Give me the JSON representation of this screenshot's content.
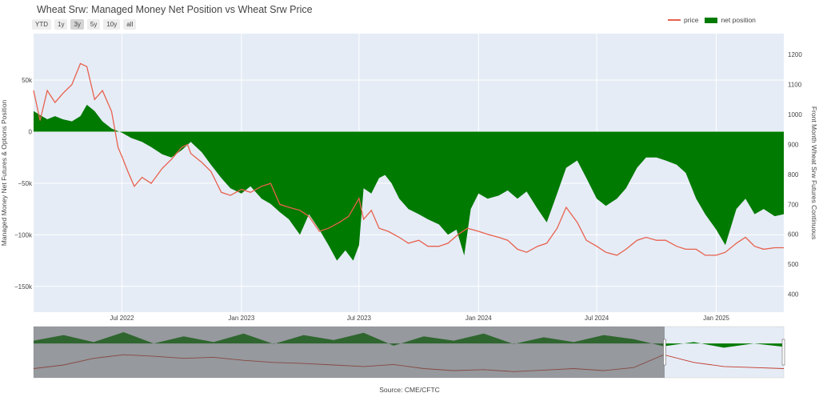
{
  "chart_data": {
    "type": "area",
    "title": "Wheat Srw: Managed Money Net Position vs Wheat Srw Price",
    "ylabel": "Managed Money Net Futures & Options Position",
    "y2label": "Front Month Wheat Srw Futures Continuous",
    "source": "Source: CME/CFTC",
    "range_buttons": [
      "YTD",
      "1y",
      "3y",
      "5y",
      "10y",
      "all"
    ],
    "active_range": "3y",
    "xlim": [
      "2022-02-15",
      "2025-04-15"
    ],
    "ylim": [
      -175000,
      95000
    ],
    "y2lim": [
      340,
      1270
    ],
    "x_ticks": [
      {
        "date": "2022-07-01",
        "label": "Jul 2022"
      },
      {
        "date": "2023-01-01",
        "label": "Jan 2023"
      },
      {
        "date": "2023-07-01",
        "label": "Jul 2023"
      },
      {
        "date": "2024-01-01",
        "label": "Jan 2024"
      },
      {
        "date": "2024-07-01",
        "label": "Jul 2024"
      },
      {
        "date": "2025-01-01",
        "label": "Jan 2025"
      }
    ],
    "y_ticks": [
      {
        "value": 50000,
        "label": "50k"
      },
      {
        "value": 0,
        "label": "0"
      },
      {
        "value": -50000,
        "label": "−50k"
      },
      {
        "value": -100000,
        "label": "−100k"
      },
      {
        "value": -150000,
        "label": "−150k"
      }
    ],
    "y2_ticks": [
      400,
      500,
      600,
      700,
      800,
      900,
      1000,
      1100,
      1200
    ],
    "legend_position": "top-right",
    "series": [
      {
        "name": "net position",
        "kind": "area",
        "color": "#007a00",
        "points": [
          [
            "2022-02-15",
            20000
          ],
          [
            "2022-02-25",
            16000
          ],
          [
            "2022-03-08",
            12000
          ],
          [
            "2022-03-20",
            15000
          ],
          [
            "2022-04-01",
            12000
          ],
          [
            "2022-04-15",
            10000
          ],
          [
            "2022-04-28",
            15000
          ],
          [
            "2022-05-08",
            26000
          ],
          [
            "2022-05-20",
            20000
          ],
          [
            "2022-06-01",
            10000
          ],
          [
            "2022-06-15",
            3000
          ],
          [
            "2022-07-01",
            -1000
          ],
          [
            "2022-07-15",
            -6000
          ],
          [
            "2022-08-01",
            -10000
          ],
          [
            "2022-08-15",
            -15000
          ],
          [
            "2022-09-01",
            -22000
          ],
          [
            "2022-09-15",
            -25000
          ],
          [
            "2022-10-01",
            -18000
          ],
          [
            "2022-10-15",
            -10000
          ],
          [
            "2022-11-01",
            -20000
          ],
          [
            "2022-11-15",
            -32000
          ],
          [
            "2022-12-01",
            -45000
          ],
          [
            "2022-12-15",
            -55000
          ],
          [
            "2023-01-01",
            -60000
          ],
          [
            "2023-01-15",
            -53000
          ],
          [
            "2023-02-01",
            -65000
          ],
          [
            "2023-02-15",
            -70000
          ],
          [
            "2023-03-01",
            -78000
          ],
          [
            "2023-03-15",
            -85000
          ],
          [
            "2023-04-01",
            -100000
          ],
          [
            "2023-04-15",
            -80000
          ],
          [
            "2023-05-01",
            -95000
          ],
          [
            "2023-05-15",
            -110000
          ],
          [
            "2023-05-28",
            -125000
          ],
          [
            "2023-06-10",
            -115000
          ],
          [
            "2023-06-22",
            -125000
          ],
          [
            "2023-07-01",
            -110000
          ],
          [
            "2023-07-08",
            -55000
          ],
          [
            "2023-07-20",
            -60000
          ],
          [
            "2023-08-01",
            -45000
          ],
          [
            "2023-08-10",
            -42000
          ],
          [
            "2023-08-20",
            -50000
          ],
          [
            "2023-09-01",
            -65000
          ],
          [
            "2023-09-15",
            -75000
          ],
          [
            "2023-10-01",
            -80000
          ],
          [
            "2023-10-15",
            -85000
          ],
          [
            "2023-11-01",
            -90000
          ],
          [
            "2023-11-15",
            -100000
          ],
          [
            "2023-11-28",
            -95000
          ],
          [
            "2023-12-10",
            -120000
          ],
          [
            "2023-12-20",
            -75000
          ],
          [
            "2024-01-01",
            -60000
          ],
          [
            "2024-01-15",
            -65000
          ],
          [
            "2024-02-01",
            -62000
          ],
          [
            "2024-02-15",
            -57000
          ],
          [
            "2024-03-01",
            -65000
          ],
          [
            "2024-03-15",
            -58000
          ],
          [
            "2024-04-01",
            -75000
          ],
          [
            "2024-04-15",
            -88000
          ],
          [
            "2024-05-01",
            -60000
          ],
          [
            "2024-05-15",
            -35000
          ],
          [
            "2024-06-01",
            -28000
          ],
          [
            "2024-06-15",
            -45000
          ],
          [
            "2024-07-01",
            -65000
          ],
          [
            "2024-07-15",
            -72000
          ],
          [
            "2024-08-01",
            -65000
          ],
          [
            "2024-08-15",
            -55000
          ],
          [
            "2024-09-01",
            -35000
          ],
          [
            "2024-09-15",
            -25000
          ],
          [
            "2024-10-01",
            -25000
          ],
          [
            "2024-10-15",
            -28000
          ],
          [
            "2024-11-01",
            -32000
          ],
          [
            "2024-11-15",
            -40000
          ],
          [
            "2024-12-01",
            -65000
          ],
          [
            "2024-12-15",
            -80000
          ],
          [
            "2025-01-01",
            -95000
          ],
          [
            "2025-01-15",
            -110000
          ],
          [
            "2025-02-01",
            -75000
          ],
          [
            "2025-02-15",
            -65000
          ],
          [
            "2025-03-01",
            -80000
          ],
          [
            "2025-03-15",
            -75000
          ],
          [
            "2025-04-01",
            -82000
          ],
          [
            "2025-04-15",
            -80000
          ]
        ]
      },
      {
        "name": "price",
        "kind": "line",
        "axis": "y2",
        "color": "#e8614d",
        "points": [
          [
            "2022-02-15",
            1080
          ],
          [
            "2022-02-25",
            980
          ],
          [
            "2022-03-08",
            1080
          ],
          [
            "2022-03-20",
            1040
          ],
          [
            "2022-04-01",
            1070
          ],
          [
            "2022-04-15",
            1100
          ],
          [
            "2022-04-28",
            1170
          ],
          [
            "2022-05-08",
            1160
          ],
          [
            "2022-05-20",
            1050
          ],
          [
            "2022-06-01",
            1080
          ],
          [
            "2022-06-15",
            1010
          ],
          [
            "2022-06-25",
            890
          ],
          [
            "2022-07-01",
            860
          ],
          [
            "2022-07-10",
            810
          ],
          [
            "2022-07-20",
            760
          ],
          [
            "2022-08-01",
            790
          ],
          [
            "2022-08-15",
            770
          ],
          [
            "2022-09-01",
            820
          ],
          [
            "2022-09-15",
            850
          ],
          [
            "2022-10-01",
            890
          ],
          [
            "2022-10-10",
            900
          ],
          [
            "2022-10-15",
            870
          ],
          [
            "2022-11-01",
            840
          ],
          [
            "2022-11-15",
            810
          ],
          [
            "2022-12-01",
            740
          ],
          [
            "2022-12-15",
            730
          ],
          [
            "2023-01-01",
            750
          ],
          [
            "2023-01-15",
            740
          ],
          [
            "2023-02-01",
            760
          ],
          [
            "2023-02-15",
            770
          ],
          [
            "2023-03-01",
            700
          ],
          [
            "2023-03-15",
            690
          ],
          [
            "2023-04-01",
            680
          ],
          [
            "2023-04-15",
            660
          ],
          [
            "2023-05-01",
            610
          ],
          [
            "2023-05-15",
            620
          ],
          [
            "2023-06-01",
            640
          ],
          [
            "2023-06-15",
            660
          ],
          [
            "2023-07-01",
            720
          ],
          [
            "2023-07-08",
            650
          ],
          [
            "2023-07-20",
            680
          ],
          [
            "2023-08-01",
            620
          ],
          [
            "2023-08-15",
            610
          ],
          [
            "2023-09-01",
            590
          ],
          [
            "2023-09-15",
            570
          ],
          [
            "2023-10-01",
            580
          ],
          [
            "2023-10-15",
            560
          ],
          [
            "2023-11-01",
            560
          ],
          [
            "2023-11-15",
            570
          ],
          [
            "2023-12-01",
            600
          ],
          [
            "2023-12-15",
            620
          ],
          [
            "2024-01-01",
            610
          ],
          [
            "2024-01-15",
            600
          ],
          [
            "2024-02-01",
            590
          ],
          [
            "2024-02-15",
            580
          ],
          [
            "2024-03-01",
            550
          ],
          [
            "2024-03-15",
            540
          ],
          [
            "2024-04-01",
            560
          ],
          [
            "2024-04-15",
            570
          ],
          [
            "2024-05-01",
            620
          ],
          [
            "2024-05-15",
            690
          ],
          [
            "2024-06-01",
            640
          ],
          [
            "2024-06-15",
            580
          ],
          [
            "2024-07-01",
            560
          ],
          [
            "2024-07-15",
            540
          ],
          [
            "2024-08-01",
            530
          ],
          [
            "2024-08-15",
            550
          ],
          [
            "2024-09-01",
            580
          ],
          [
            "2024-09-15",
            590
          ],
          [
            "2024-10-01",
            580
          ],
          [
            "2024-10-15",
            580
          ],
          [
            "2024-11-01",
            560
          ],
          [
            "2024-11-15",
            550
          ],
          [
            "2024-12-01",
            550
          ],
          [
            "2024-12-15",
            530
          ],
          [
            "2025-01-01",
            530
          ],
          [
            "2025-01-15",
            540
          ],
          [
            "2025-02-01",
            570
          ],
          [
            "2025-02-15",
            590
          ],
          [
            "2025-03-01",
            560
          ],
          [
            "2025-03-15",
            550
          ],
          [
            "2025-04-01",
            555
          ],
          [
            "2025-04-15",
            555
          ]
        ]
      }
    ],
    "navigator": {
      "selected_start": "2022-02-15",
      "selected_end": "2025-04-15",
      "net_position_history": [
        [
          0,
          0.5
        ],
        [
          0.04,
          0.3
        ],
        [
          0.08,
          0.55
        ],
        [
          0.12,
          0.2
        ],
        [
          0.16,
          0.6
        ],
        [
          0.2,
          0.35
        ],
        [
          0.24,
          0.55
        ],
        [
          0.28,
          0.25
        ],
        [
          0.32,
          0.62
        ],
        [
          0.36,
          0.3
        ],
        [
          0.4,
          0.48
        ],
        [
          0.44,
          0.22
        ],
        [
          0.48,
          0.68
        ],
        [
          0.52,
          0.35
        ],
        [
          0.56,
          0.5
        ],
        [
          0.6,
          0.25
        ],
        [
          0.64,
          0.62
        ],
        [
          0.68,
          0.38
        ],
        [
          0.72,
          0.55
        ],
        [
          0.76,
          0.3
        ],
        [
          0.8,
          0.45
        ],
        [
          0.84,
          0.7
        ],
        [
          0.88,
          0.55
        ],
        [
          0.92,
          0.75
        ],
        [
          0.96,
          0.6
        ],
        [
          1.0,
          0.72
        ]
      ],
      "price_history": [
        [
          0,
          0.82
        ],
        [
          0.04,
          0.75
        ],
        [
          0.08,
          0.62
        ],
        [
          0.12,
          0.55
        ],
        [
          0.16,
          0.58
        ],
        [
          0.2,
          0.62
        ],
        [
          0.24,
          0.6
        ],
        [
          0.28,
          0.66
        ],
        [
          0.32,
          0.7
        ],
        [
          0.36,
          0.72
        ],
        [
          0.4,
          0.75
        ],
        [
          0.44,
          0.78
        ],
        [
          0.48,
          0.74
        ],
        [
          0.52,
          0.82
        ],
        [
          0.56,
          0.86
        ],
        [
          0.6,
          0.84
        ],
        [
          0.64,
          0.88
        ],
        [
          0.68,
          0.85
        ],
        [
          0.72,
          0.82
        ],
        [
          0.76,
          0.86
        ],
        [
          0.8,
          0.8
        ],
        [
          0.84,
          0.55
        ],
        [
          0.88,
          0.7
        ],
        [
          0.92,
          0.78
        ],
        [
          0.96,
          0.8
        ],
        [
          1.0,
          0.82
        ]
      ]
    }
  }
}
